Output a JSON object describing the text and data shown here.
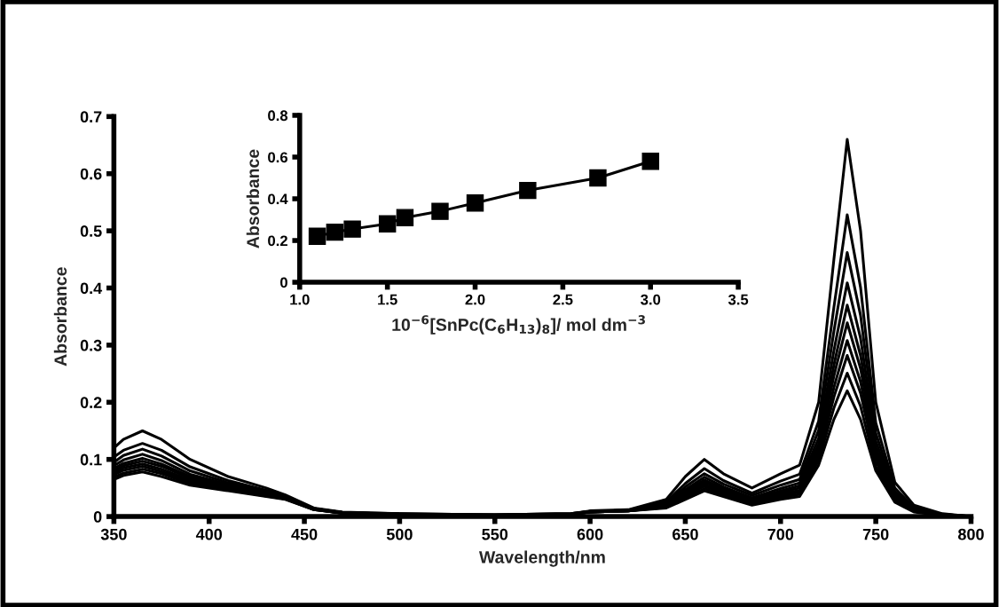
{
  "chart_data": [
    {
      "type": "line",
      "xlabel": "Wavelength/nm",
      "ylabel": "Absorbance",
      "xlim": [
        350,
        800
      ],
      "xticks": [
        350,
        400,
        450,
        500,
        550,
        600,
        650,
        700,
        750,
        800
      ],
      "ylim": [
        0,
        0.7
      ],
      "yticks": [
        0,
        0.1,
        0.2,
        0.3,
        0.4,
        0.5,
        0.6,
        0.7
      ],
      "marker": "none",
      "line_style": "solid",
      "x": [
        350,
        355,
        365,
        375,
        390,
        410,
        430,
        440,
        455,
        470,
        500,
        550,
        590,
        600,
        620,
        640,
        650,
        660,
        670,
        685,
        700,
        710,
        720,
        728,
        735,
        742,
        750,
        760,
        770,
        785,
        800
      ],
      "series": [
        {
          "color": "#000000",
          "values": [
            0.12,
            0.135,
            0.15,
            0.135,
            0.1,
            0.07,
            0.05,
            0.038,
            0.015,
            0.008,
            0.005,
            0.003,
            0.005,
            0.01,
            0.012,
            0.03,
            0.07,
            0.1,
            0.075,
            0.05,
            0.075,
            0.09,
            0.2,
            0.45,
            0.66,
            0.5,
            0.2,
            0.06,
            0.02,
            0.005,
            0
          ]
        },
        {
          "color": "#000000",
          "values": [
            0.104,
            0.116,
            0.128,
            0.116,
            0.087,
            0.063,
            0.046,
            0.036,
            0.014,
            0.007,
            0.005,
            0.003,
            0.005,
            0.009,
            0.011,
            0.026,
            0.058,
            0.084,
            0.063,
            0.041,
            0.062,
            0.074,
            0.167,
            0.366,
            0.528,
            0.401,
            0.164,
            0.05,
            0.016,
            0.004,
            0
          ]
        },
        {
          "color": "#000000",
          "values": [
            0.095,
            0.107,
            0.118,
            0.106,
            0.08,
            0.059,
            0.043,
            0.034,
            0.014,
            0.007,
            0.004,
            0.003,
            0.005,
            0.009,
            0.011,
            0.023,
            0.052,
            0.075,
            0.057,
            0.037,
            0.055,
            0.065,
            0.151,
            0.324,
            0.462,
            0.352,
            0.146,
            0.044,
            0.015,
            0.004,
            0
          ]
        },
        {
          "color": "#000000",
          "values": [
            0.089,
            0.099,
            0.109,
            0.098,
            0.074,
            0.056,
            0.042,
            0.033,
            0.013,
            0.007,
            0.004,
            0.002,
            0.004,
            0.009,
            0.011,
            0.022,
            0.047,
            0.069,
            0.052,
            0.033,
            0.049,
            0.059,
            0.137,
            0.29,
            0.409,
            0.312,
            0.132,
            0.04,
            0.013,
            0.003,
            0
          ]
        },
        {
          "color": "#000000",
          "values": [
            0.084,
            0.093,
            0.102,
            0.092,
            0.07,
            0.054,
            0.04,
            0.033,
            0.013,
            0.007,
            0.004,
            0.002,
            0.004,
            0.009,
            0.011,
            0.02,
            0.044,
            0.064,
            0.049,
            0.03,
            0.045,
            0.054,
            0.127,
            0.265,
            0.37,
            0.282,
            0.121,
            0.037,
            0.012,
            0.003,
            0
          ]
        },
        {
          "color": "#000000",
          "values": [
            0.08,
            0.089,
            0.097,
            0.088,
            0.067,
            0.052,
            0.039,
            0.032,
            0.013,
            0.006,
            0.004,
            0.002,
            0.004,
            0.008,
            0.01,
            0.019,
            0.041,
            0.06,
            0.046,
            0.028,
            0.042,
            0.05,
            0.12,
            0.246,
            0.339,
            0.259,
            0.112,
            0.034,
            0.011,
            0.003,
            0
          ]
        },
        {
          "color": "#000000",
          "values": [
            0.076,
            0.085,
            0.092,
            0.083,
            0.064,
            0.05,
            0.038,
            0.032,
            0.013,
            0.006,
            0.004,
            0.002,
            0.004,
            0.008,
            0.01,
            0.018,
            0.038,
            0.056,
            0.043,
            0.026,
            0.039,
            0.046,
            0.112,
            0.226,
            0.308,
            0.236,
            0.104,
            0.032,
            0.01,
            0.003,
            0
          ]
        },
        {
          "color": "#000000",
          "values": [
            0.073,
            0.081,
            0.088,
            0.079,
            0.061,
            0.049,
            0.037,
            0.031,
            0.012,
            0.006,
            0.004,
            0.002,
            0.004,
            0.008,
            0.01,
            0.017,
            0.036,
            0.053,
            0.041,
            0.024,
            0.036,
            0.043,
            0.105,
            0.209,
            0.282,
            0.216,
            0.097,
            0.03,
            0.01,
            0.002,
            0
          ]
        },
        {
          "color": "#000000",
          "values": [
            0.069,
            0.076,
            0.083,
            0.075,
            0.058,
            0.047,
            0.036,
            0.031,
            0.012,
            0.006,
            0.004,
            0.002,
            0.004,
            0.008,
            0.01,
            0.016,
            0.033,
            0.049,
            0.038,
            0.022,
            0.033,
            0.039,
            0.098,
            0.19,
            0.251,
            0.193,
            0.088,
            0.028,
            0.009,
            0.002,
            0
          ]
        },
        {
          "color": "#000000",
          "values": [
            0.065,
            0.072,
            0.078,
            0.07,
            0.055,
            0.045,
            0.035,
            0.03,
            0.012,
            0.006,
            0.004,
            0.002,
            0.004,
            0.008,
            0.01,
            0.015,
            0.03,
            0.045,
            0.035,
            0.02,
            0.03,
            0.035,
            0.09,
            0.17,
            0.22,
            0.17,
            0.08,
            0.025,
            0.008,
            0.002,
            0
          ]
        }
      ]
    },
    {
      "type": "line",
      "xlabel": "10$^{−6}$[SnPc(C$_{6}$H$_{13}$)$_{8}$]/ mol dm$^{−3}$",
      "ylabel": "Absorbance",
      "xlim": [
        1.0,
        3.5
      ],
      "xticks": [
        {
          "value": 1,
          "label": "1.0"
        },
        1.5,
        {
          "value": 2,
          "label": "2.0"
        },
        2.5,
        {
          "value": 3,
          "label": "3.0"
        },
        3.5
      ],
      "ylim": [
        0,
        0.8
      ],
      "yticks": [
        0,
        0.2,
        0.4,
        0.6,
        0.8
      ],
      "marker": "square",
      "line_style": "solid",
      "x": [
        1.1,
        1.2,
        1.3,
        1.5,
        1.6,
        1.8,
        2.0,
        2.3,
        2.7,
        3.0
      ],
      "series": [
        {
          "color": "#000000",
          "values": [
            0.22,
            0.24,
            0.255,
            0.28,
            0.31,
            0.34,
            0.38,
            0.44,
            0.5,
            0.58
          ]
        }
      ]
    }
  ]
}
